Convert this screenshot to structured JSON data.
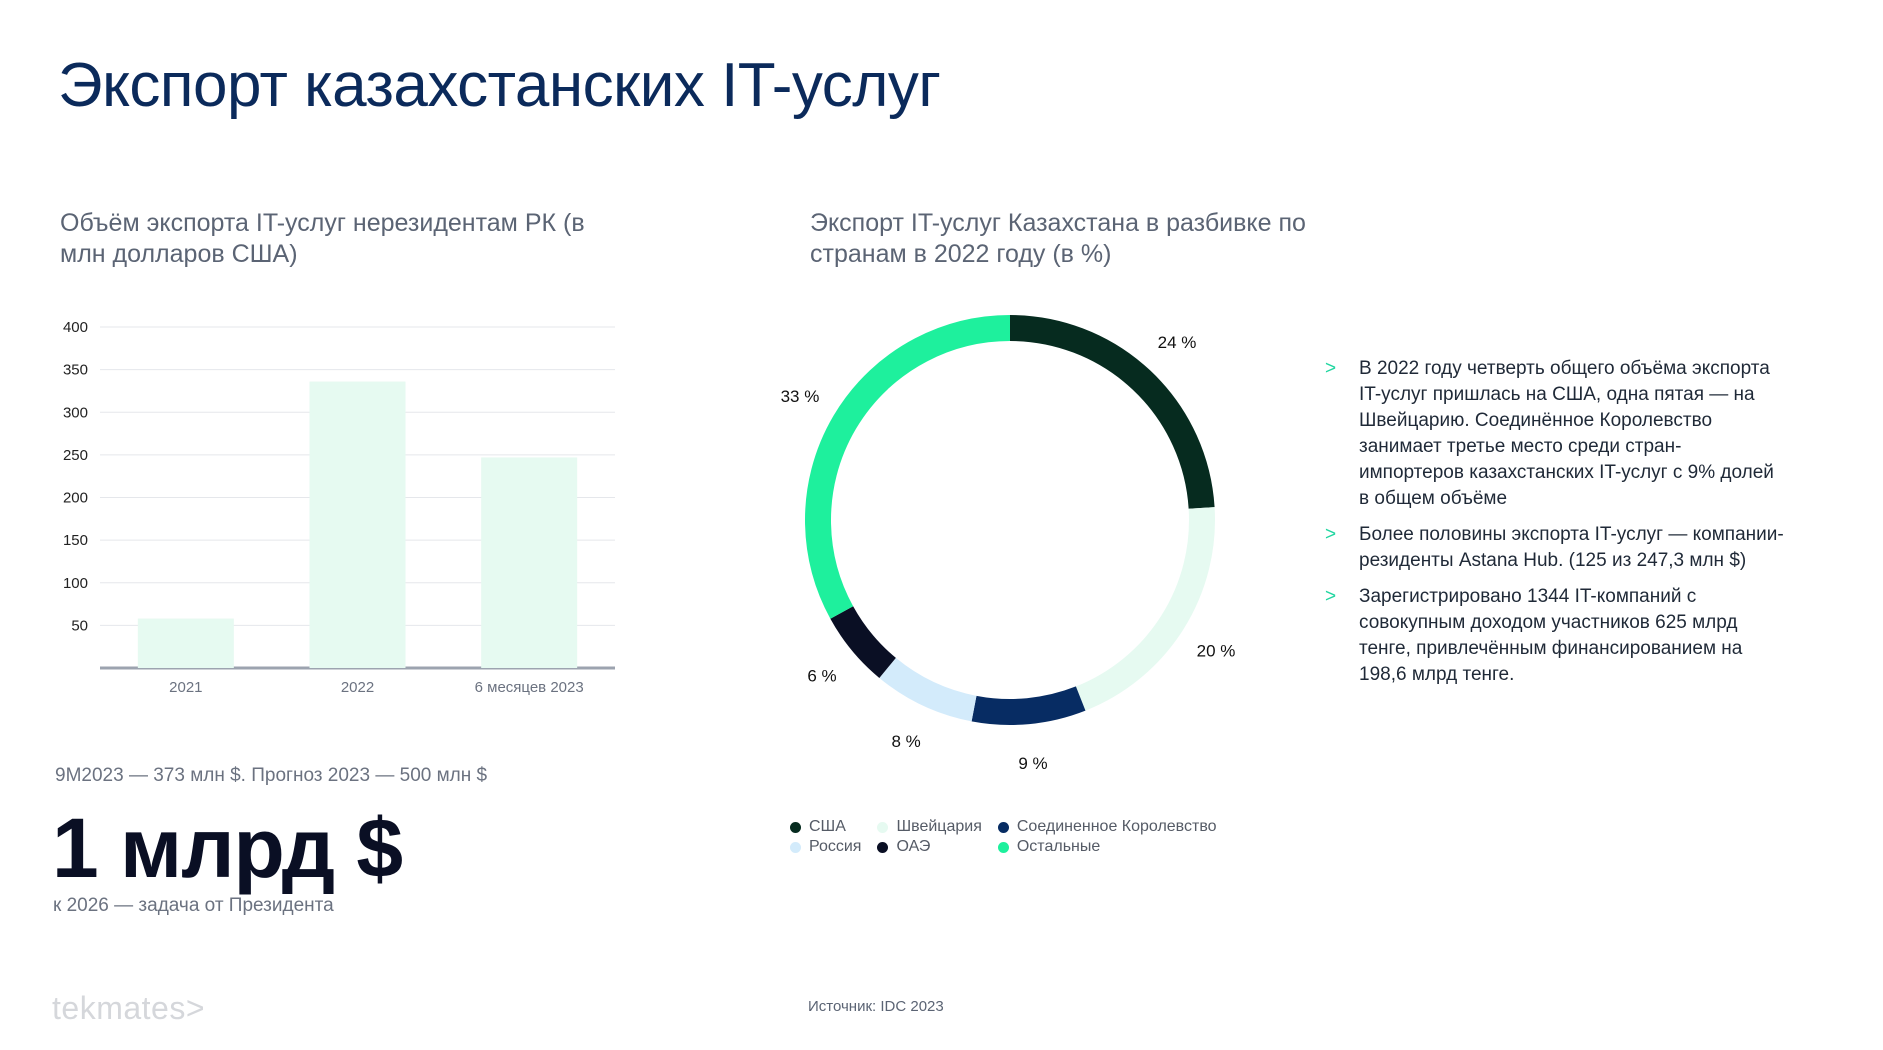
{
  "page": {
    "title": "Экспорт казахстанских IT-услуг",
    "source": "Источник: IDC 2023",
    "logo": "tekmates>"
  },
  "bar_section": {
    "title": "Объём экспорта IT-услуг нерезидентам РК (в млн долларов США)",
    "note": "9M2023 — 373 млн $. Прогноз 2023 — 500 млн $",
    "big_number": "1 млрд $",
    "big_sub": "к 2026 — задача от Президента"
  },
  "donut_section": {
    "title": "Экспорт IT-услуг Казахстана в разбивке по странам в 2022 году (в %)"
  },
  "notes": [
    "В 2022 году четверть общего объёма экспорта IT-услуг пришлась на США, одна пятая — на Швейцарию. Соединённое Королевство занимает третье место среди стран-импортеров казахстанских IT-услуг с 9% долей в общем объёме",
    "Более половины экспорта IT-услуг — компании-резиденты Astana Hub. (125 из 247,3 млн $)",
    "Зарегистрировано 1344 IT-компаний с совокупным доходом участников 625 млрд тенге, привлечённым финансированием на 198,6 млрд тенге."
  ],
  "note_marker": ">",
  "colors": {
    "title": "#0b2a5b",
    "bar": "#e6faf1",
    "accent": "#20d6a0"
  },
  "chart_data": [
    {
      "type": "bar",
      "categories": [
        "2021",
        "2022",
        "6 месяцев 2023"
      ],
      "values": [
        58,
        336,
        247
      ],
      "ylim": [
        0,
        400
      ],
      "yticks": [
        50,
        100,
        150,
        200,
        250,
        300,
        350,
        400
      ],
      "grid": true,
      "color": "#e6faf1"
    },
    {
      "type": "pie",
      "variant": "donut",
      "slices": [
        {
          "name": "США",
          "value": 24,
          "label": "24 %",
          "color": "#062b1f"
        },
        {
          "name": "Швейцария",
          "value": 20,
          "label": "20 %",
          "color": "#e6faf1"
        },
        {
          "name": "Соединенное Королевство",
          "value": 9,
          "label": "9 %",
          "color": "#072c63"
        },
        {
          "name": "Россия",
          "value": 8,
          "label": "8 %",
          "color": "#d3ebfb"
        },
        {
          "name": "ОАЭ",
          "value": 6,
          "label": "6 %",
          "color": "#0a0f24"
        },
        {
          "name": "Остальные",
          "value": 33,
          "label": "33 %",
          "color": "#1ef09d"
        }
      ],
      "legend_placement": "bottom",
      "start_angle": "top, clockwise"
    }
  ]
}
